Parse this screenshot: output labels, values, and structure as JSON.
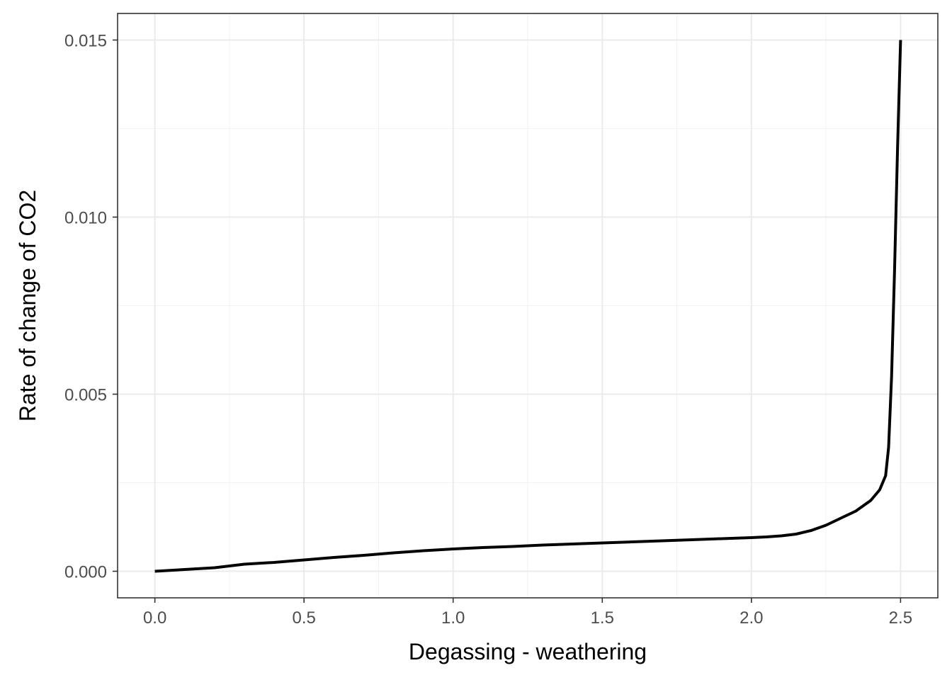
{
  "chart_data": {
    "type": "line",
    "title": "",
    "xlabel": "Degassing - weathering",
    "ylabel": "Rate of change of CO2",
    "xlim": [
      -0.125,
      2.625
    ],
    "ylim": [
      -0.00075,
      0.01575
    ],
    "x_ticks": [
      0.0,
      0.5,
      1.0,
      1.5,
      2.0,
      2.5
    ],
    "x_tick_labels": [
      "0.0",
      "0.5",
      "1.0",
      "1.5",
      "2.0",
      "2.5"
    ],
    "y_ticks": [
      0.0,
      0.005,
      0.01,
      0.015
    ],
    "y_tick_labels": [
      "0.000",
      "0.005",
      "0.010",
      "0.015"
    ],
    "grid": true,
    "legend": "none",
    "series": [
      {
        "color": "#000000",
        "x": [
          0.0,
          0.1,
          0.2,
          0.3,
          0.4,
          0.5,
          0.6,
          0.7,
          0.8,
          0.9,
          1.0,
          1.1,
          1.2,
          1.3,
          1.4,
          1.5,
          1.6,
          1.7,
          1.8,
          1.9,
          2.0,
          2.05,
          2.1,
          2.15,
          2.2,
          2.25,
          2.3,
          2.35,
          2.4,
          2.43,
          2.45,
          2.46,
          2.47,
          2.48,
          2.49,
          2.5
        ],
        "y": [
          0.0,
          5e-05,
          0.0001,
          0.0002,
          0.00025,
          0.00032,
          0.00039,
          0.00045,
          0.00052,
          0.00058,
          0.00063,
          0.00067,
          0.0007,
          0.00074,
          0.00077,
          0.0008,
          0.00083,
          0.00086,
          0.00089,
          0.00092,
          0.00095,
          0.00097,
          0.001,
          0.00105,
          0.00115,
          0.0013,
          0.0015,
          0.0017,
          0.002,
          0.0023,
          0.0027,
          0.0035,
          0.0055,
          0.0085,
          0.012,
          0.015
        ]
      }
    ]
  }
}
